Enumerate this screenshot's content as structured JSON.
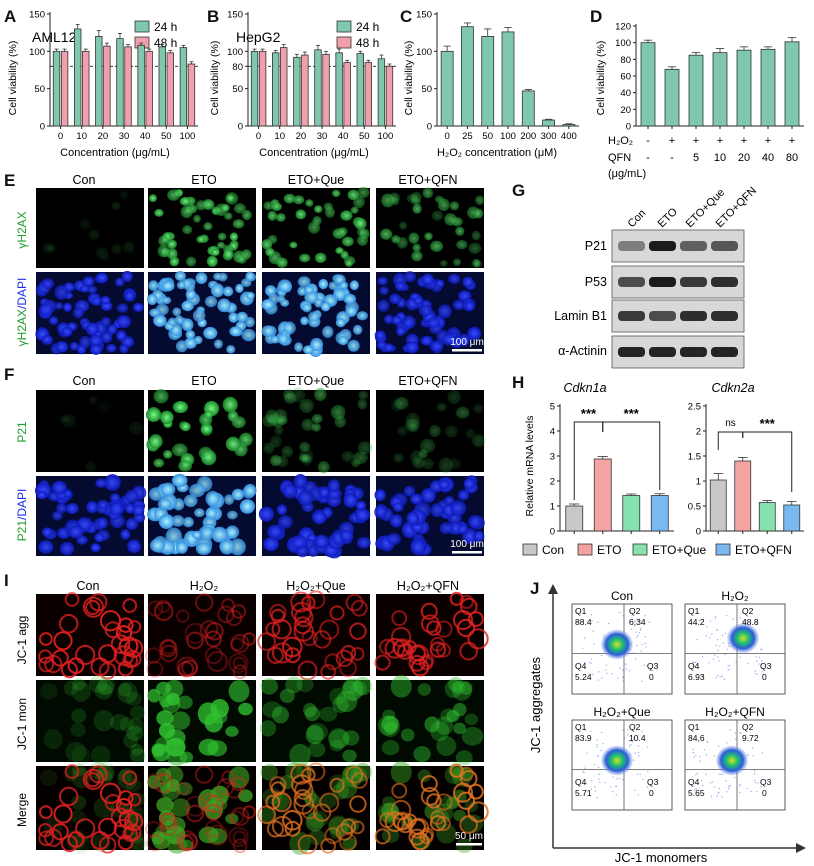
{
  "colors": {
    "teal": "#7fc8ad",
    "pink": "#f0a0ac",
    "grey": "#c8c8c8",
    "salmon": "#f4a3a3",
    "mint": "#87e0b0",
    "sky": "#7ab8f0",
    "gfp": "#2ecc40",
    "dapi": "#1e2cf0",
    "red": "#e02020"
  },
  "panel_letters": [
    "A",
    "B",
    "C",
    "D",
    "E",
    "F",
    "G",
    "H",
    "I",
    "J"
  ],
  "panelA": {
    "subtitle": "AML12",
    "ylabel": "Cell viability (%)",
    "xlabel": "Concentration (μg/mL)",
    "legend": [
      "24 h",
      "48 h"
    ]
  },
  "panelB": {
    "subtitle": "HepG2",
    "ylabel": "Cell viability (%)",
    "xlabel": "Concentration (μg/mL)",
    "legend": [
      "24 h",
      "48 h"
    ]
  },
  "panelC": {
    "ylabel": "Cell viability (%)",
    "xlabel": "H₂O₂ concentration (μM)"
  },
  "panelD": {
    "ylabel": "Cell viability (%)",
    "row_labels": [
      "H₂O₂",
      "QFN",
      "(μg/mL)"
    ],
    "h2o2_row": [
      "-",
      "+",
      "+",
      "+",
      "+",
      "+",
      "+"
    ],
    "qfn_row": [
      "-",
      "-",
      "5",
      "10",
      "20",
      "40",
      "80"
    ]
  },
  "panelE": {
    "columns": [
      "Con",
      "ETO",
      "ETO+Que",
      "ETO+QFN"
    ],
    "row1": "γH2AX",
    "row2a": "γH2AX",
    "row2b": "/DAPI",
    "scalebar": "100 μm"
  },
  "panelF": {
    "columns": [
      "Con",
      "ETO",
      "ETO+Que",
      "ETO+QFN"
    ],
    "row1": "P21",
    "row2a": "P21",
    "row2b": "/DAPI",
    "scalebar": "100 μm"
  },
  "panelG": {
    "lanes": [
      "Con",
      "ETO",
      "ETO+Que",
      "ETO+QFN"
    ],
    "proteins": [
      "P21",
      "P53",
      "Lamin B1",
      "α-Actinin"
    ]
  },
  "panelH": {
    "title1": "Cdkn1a",
    "title2": "Cdkn2a",
    "ylabel": "Relative mRNA levels",
    "sig1a": "***",
    "sig1b": "***",
    "sig2a": "ns",
    "sig2b": "***",
    "legend": [
      "Con",
      "ETO",
      "ETO+Que",
      "ETO+QFN"
    ]
  },
  "panelI": {
    "columns": [
      "Con",
      "H₂O₂",
      "H₂O₂+Que",
      "H₂O₂+QFN"
    ],
    "rows": [
      "JC-1 agg",
      "JC-1 mon",
      "Merge"
    ],
    "scalebar": "50 μm"
  },
  "panelJ": {
    "ylabel": "JC-1 aggregates",
    "xlabel": "JC-1 monomers",
    "plots": [
      {
        "title": "Con",
        "q1": "88.4",
        "q2": "6.34",
        "q3": "0",
        "q4": "5.24"
      },
      {
        "title": "H₂O₂",
        "q1": "44.2",
        "q2": "48.8",
        "q3": "0",
        "q4": "6.93"
      },
      {
        "title": "H₂O₂+Que",
        "q1": "83.9",
        "q2": "10.4",
        "q3": "0",
        "q4": "5.71"
      },
      {
        "title": "H₂O₂+QFN",
        "q1": "84.6",
        "q2": "9.72",
        "q3": "0",
        "q4": "5.65"
      }
    ],
    "quadrant_names": [
      "Q1",
      "Q2",
      "Q3",
      "Q4"
    ]
  },
  "chart_data": [
    {
      "type": "bar",
      "panel": "A",
      "title": "AML12",
      "xlabel": "Concentration (μg/mL)",
      "ylabel": "Cell viability (%)",
      "categories": [
        "0",
        "10",
        "20",
        "30",
        "40",
        "50",
        "100"
      ],
      "series": [
        {
          "name": "24 h",
          "values": [
            100,
            130,
            120,
            117,
            108,
            106,
            105
          ],
          "errors": [
            3,
            6,
            8,
            7,
            3,
            3,
            3
          ]
        },
        {
          "name": "48 h",
          "values": [
            100,
            100,
            107,
            106,
            100,
            98,
            83
          ],
          "errors": [
            3,
            3,
            4,
            3,
            3,
            3,
            3
          ]
        }
      ],
      "yticks": [
        0,
        50,
        100,
        150
      ],
      "ylim": [
        0,
        150
      ],
      "reference_line": 80
    },
    {
      "type": "bar",
      "panel": "B",
      "title": "HepG2",
      "xlabel": "Concentration (μg/mL)",
      "ylabel": "Cell viability (%)",
      "categories": [
        "0",
        "10",
        "20",
        "30",
        "40",
        "50",
        "100"
      ],
      "series": [
        {
          "name": "24 h",
          "values": [
            100,
            98,
            92,
            102,
            98,
            97,
            90
          ],
          "errors": [
            3,
            3,
            4,
            6,
            5,
            3,
            5
          ]
        },
        {
          "name": "48 h",
          "values": [
            100,
            105,
            95,
            96,
            85,
            85,
            80
          ],
          "errors": [
            3,
            4,
            4,
            4,
            3,
            3,
            3
          ]
        }
      ],
      "yticks": [
        0,
        50,
        80,
        100,
        150
      ],
      "ylim": [
        0,
        150
      ],
      "reference_line": 80
    },
    {
      "type": "bar",
      "panel": "C",
      "xlabel": "H₂O₂ concentration (μM)",
      "ylabel": "Cell viability (%)",
      "categories": [
        "0",
        "25",
        "50",
        "100",
        "200",
        "300",
        "400"
      ],
      "values": [
        100,
        133,
        120,
        126,
        47,
        8,
        2
      ],
      "errors": [
        7,
        5,
        10,
        6,
        2,
        1,
        1
      ],
      "yticks": [
        0,
        50,
        100,
        150
      ],
      "ylim": [
        0,
        150
      ]
    },
    {
      "type": "bar",
      "panel": "D",
      "ylabel": "Cell viability (%)",
      "categories": [
        "-/-",
        "+/-",
        "+/5",
        "+/10",
        "+/20",
        "+/40",
        "+/80"
      ],
      "values": [
        100,
        68,
        85,
        88,
        91,
        92,
        101
      ],
      "errors": [
        3,
        3,
        3,
        5,
        4,
        3,
        5
      ],
      "yticks": [
        0,
        20,
        40,
        60,
        80,
        100,
        120
      ],
      "ylim": [
        0,
        120
      ]
    },
    {
      "type": "bar",
      "panel": "H-Cdkn1a",
      "title": "Cdkn1a",
      "ylabel": "Relative mRNA levels",
      "categories": [
        "Con",
        "ETO",
        "ETO+Que",
        "ETO+QFN"
      ],
      "values": [
        1.0,
        2.88,
        1.42,
        1.42
      ],
      "errors": [
        0.08,
        0.1,
        0.06,
        0.07
      ],
      "yticks": [
        0,
        1,
        2,
        3,
        4,
        5
      ],
      "ylim": [
        0,
        5
      ]
    },
    {
      "type": "bar",
      "panel": "H-Cdkn2a",
      "title": "Cdkn2a",
      "categories": [
        "Con",
        "ETO",
        "ETO+Que",
        "ETO+QFN"
      ],
      "values": [
        1.02,
        1.4,
        0.57,
        0.52
      ],
      "errors": [
        0.13,
        0.07,
        0.04,
        0.07
      ],
      "yticks": [
        0,
        0.5,
        1.0,
        1.5,
        2.0,
        2.5
      ],
      "ylim": [
        0,
        2.5
      ]
    }
  ]
}
